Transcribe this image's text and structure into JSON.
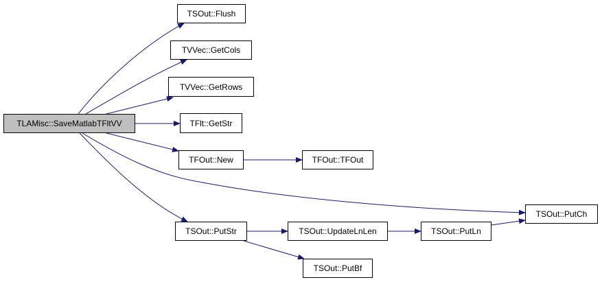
{
  "graph": {
    "edge_color": "#191970",
    "root_fill": "#bfbfbf",
    "nodes": {
      "root": "TLAMisc::SaveMatlabTFltVV",
      "flush": "TSOut::Flush",
      "getcols": "TVVec::GetCols",
      "getrows": "TVVec::GetRows",
      "getstr": "TFlt::GetStr",
      "new": "TFOut::New",
      "tfout": "TFOut::TFOut",
      "putch": "TSOut::PutCh",
      "putstr": "TSOut::PutStr",
      "updatelnlen": "TSOut::UpdateLnLen",
      "putln": "TSOut::PutLn",
      "putbf": "TSOut::PutBf"
    },
    "edges": [
      [
        "root",
        "flush"
      ],
      [
        "root",
        "getcols"
      ],
      [
        "root",
        "getrows"
      ],
      [
        "root",
        "getstr"
      ],
      [
        "root",
        "new"
      ],
      [
        "root",
        "putch"
      ],
      [
        "root",
        "putstr"
      ],
      [
        "new",
        "tfout"
      ],
      [
        "putstr",
        "updatelnlen"
      ],
      [
        "putstr",
        "putbf"
      ],
      [
        "updatelnlen",
        "putln"
      ],
      [
        "putln",
        "putch"
      ]
    ]
  }
}
